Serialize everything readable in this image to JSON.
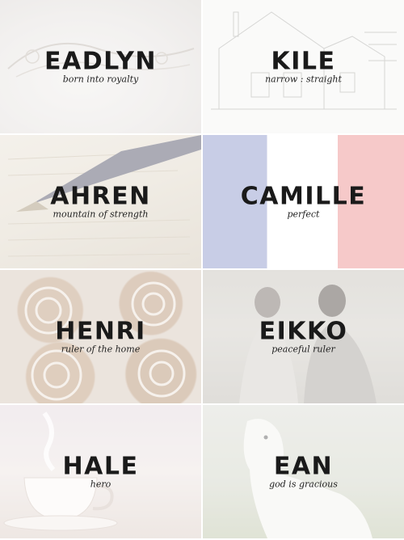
{
  "tiles": [
    {
      "name": "EADLYN",
      "meaning": "born into royalty"
    },
    {
      "name": "KILE",
      "meaning": "narrow : straight"
    },
    {
      "name": "AHREN",
      "meaning": "mountain of strength"
    },
    {
      "name": "CAMILLE",
      "meaning": "perfect"
    },
    {
      "name": "HENRI",
      "meaning": "ruler of the home"
    },
    {
      "name": "EIKKO",
      "meaning": "peaceful ruler"
    },
    {
      "name": "HALE",
      "meaning": "hero"
    },
    {
      "name": "EAN",
      "meaning": "god is gracious"
    }
  ],
  "colors": {
    "flag_blue": "#c8cde6",
    "flag_white": "#ffffff",
    "flag_red": "#f6c9c9",
    "text": "#1a1a1a"
  }
}
